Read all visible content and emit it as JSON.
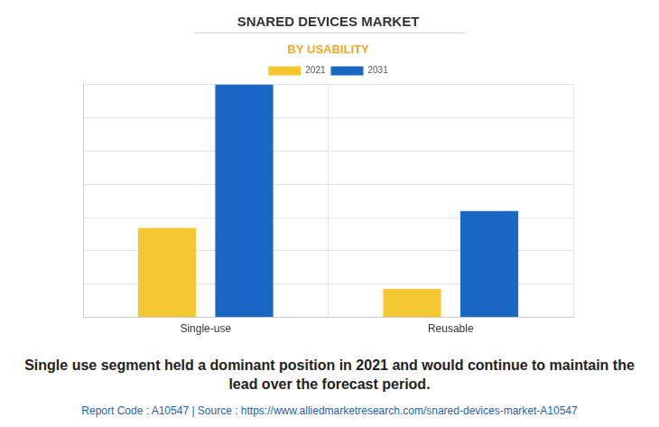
{
  "chart_data": {
    "type": "bar",
    "title": "SNARED DEVICES MARKET",
    "subtitle": "BY USABILITY",
    "categories": [
      "Single-use",
      "Reusable"
    ],
    "series": [
      {
        "name": "2021",
        "color": "#f5c832",
        "values": [
          2.69,
          0.86
        ]
      },
      {
        "name": "2031",
        "color": "#1a68c6",
        "values": [
          7,
          3.2
        ]
      }
    ],
    "ylim": [
      0,
      7
    ],
    "yticks": [
      0,
      1,
      2,
      3,
      4,
      5,
      6,
      7
    ],
    "grid": true,
    "legend": "top",
    "tick_labels": "x",
    "caption": "Single use segment held a dominant position in 2021 and would continue to maintain the lead over the forecast period.",
    "source": "Report Code : A10547  |  Source : https://www.alliedmarketresearch.com/snared-devices-market-A10547"
  }
}
